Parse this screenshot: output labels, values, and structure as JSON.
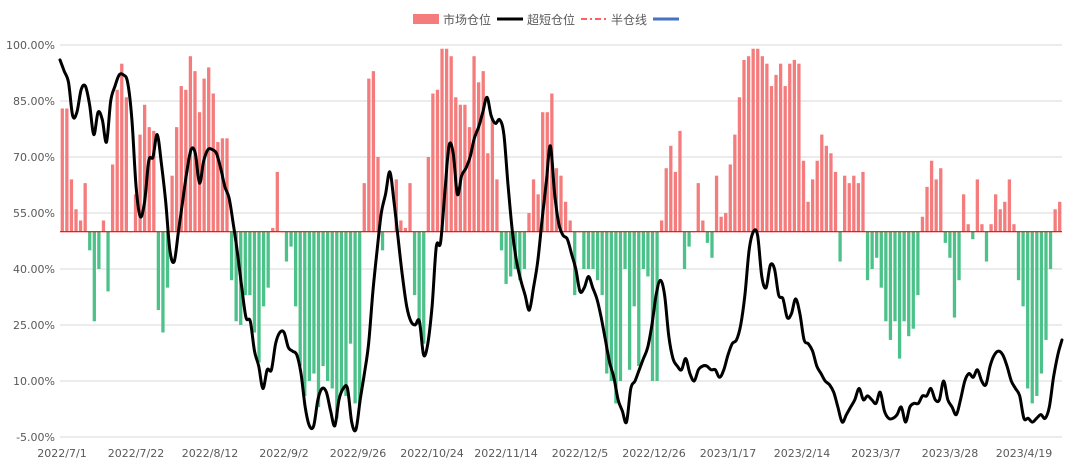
{
  "chart_data": {
    "type": "bar",
    "title": "",
    "xlabel": "",
    "ylabel": "",
    "ylim": [
      -5,
      100
    ],
    "yticks": [
      -5,
      10,
      25,
      40,
      55,
      70,
      85,
      100
    ],
    "ytick_labels": [
      "-5.00%",
      "10.00%",
      "25.00%",
      "40.00%",
      "55.00%",
      "70.00%",
      "85.00%",
      "100.00%"
    ],
    "xtick_labels": [
      "2022/7/1",
      "2022/7/22",
      "2022/8/12",
      "2022/9/2",
      "2022/9/26",
      "2022/10/24",
      "2022/11/14",
      "2022/12/5",
      "2022/12/26",
      "2023/1/17",
      "2023/2/14",
      "2023/3/7",
      "2023/3/28",
      "2023/4/19"
    ],
    "legend_position": "top-center",
    "baseline": 50,
    "colors": {
      "above": "#f47c7c",
      "below": "#4cc28a",
      "line": "#000000",
      "half_line": "#ff0000",
      "blue_line": "#4472c4",
      "grid": "#d9d9d9"
    },
    "legend": [
      {
        "label": "市场仓位",
        "kind": "bar-above"
      },
      {
        "label": "超短仓位",
        "kind": "line"
      },
      {
        "label": "半仓线",
        "kind": "dashdot"
      },
      {
        "label": "",
        "kind": "blue-line"
      }
    ],
    "series": [
      {
        "name": "市场仓位",
        "kind": "bar",
        "values": [
          83,
          83,
          64,
          56,
          53,
          63,
          45,
          26,
          40,
          53,
          34,
          68,
          88,
          95,
          86,
          50,
          60,
          76,
          84,
          78,
          77,
          29,
          23,
          35,
          65,
          78,
          89,
          88,
          97,
          93,
          82,
          91,
          94,
          87,
          74,
          75,
          75,
          37,
          26,
          25,
          33,
          33,
          23,
          15,
          30,
          35,
          51,
          66,
          50,
          42,
          46,
          30,
          14,
          6,
          10,
          12,
          3,
          14,
          10,
          8,
          0,
          7,
          6,
          20,
          4,
          4,
          63,
          91,
          93,
          70,
          45,
          50,
          50,
          64,
          53,
          51,
          63,
          33,
          25,
          20,
          70,
          87,
          88,
          99,
          99,
          97,
          86,
          84,
          84,
          78,
          97,
          90,
          93,
          71,
          80,
          64,
          45,
          36,
          38,
          40,
          37,
          40,
          55,
          64,
          60,
          82,
          82,
          87,
          67,
          65,
          58,
          53,
          33,
          50,
          40,
          40,
          40,
          37,
          33,
          12,
          10,
          4,
          10,
          40,
          13,
          30,
          14,
          40,
          38,
          10,
          10,
          53,
          67,
          73,
          66,
          77,
          40,
          46,
          50,
          63,
          53,
          47,
          43,
          65,
          54,
          55,
          68,
          76,
          86,
          96,
          97,
          99,
          99,
          97,
          95,
          89,
          92,
          95,
          89,
          95,
          96,
          95,
          69,
          58,
          64,
          69,
          76,
          73,
          71,
          66,
          42,
          65,
          63,
          65,
          63,
          66,
          37,
          40,
          43,
          35,
          26,
          21,
          26,
          16,
          26,
          22,
          24,
          33,
          54,
          62,
          69,
          64,
          67,
          47,
          43,
          27,
          37,
          60,
          52,
          48,
          64,
          52,
          42,
          52,
          60,
          56,
          58,
          64,
          52,
          37,
          30,
          8,
          4,
          6,
          12,
          21,
          40,
          56,
          58
        ]
      },
      {
        "name": "超短仓位",
        "kind": "line",
        "values": [
          96,
          93,
          90,
          81,
          82,
          88,
          89,
          84,
          76,
          82,
          80,
          74,
          85,
          89,
          92,
          92,
          90,
          80,
          62,
          54,
          58,
          69,
          70,
          76,
          68,
          58,
          45,
          42,
          50,
          58,
          66,
          72,
          71,
          63,
          69,
          72,
          72,
          71,
          67,
          62,
          59,
          52,
          44,
          35,
          27,
          26,
          18,
          14,
          8,
          13,
          13,
          20,
          23,
          23,
          19,
          18,
          17,
          12,
          3,
          -2,
          -2,
          5,
          8,
          7,
          2,
          -2,
          5,
          8,
          8,
          -1,
          -3,
          5,
          12,
          20,
          34,
          45,
          55,
          60,
          66,
          58,
          48,
          38,
          30,
          26,
          25,
          26,
          17,
          20,
          30,
          46,
          47,
          60,
          73,
          71,
          60,
          65,
          67,
          70,
          75,
          78,
          82,
          86,
          81,
          79,
          80,
          76,
          62,
          50,
          42,
          37,
          33,
          29,
          35,
          42,
          53,
          63,
          73,
          60,
          52,
          49,
          48,
          44,
          40,
          34,
          35,
          38,
          35,
          32,
          27,
          21,
          15,
          11,
          5,
          2,
          -1,
          8,
          10,
          13,
          16,
          19,
          25,
          33,
          37,
          33,
          22,
          16,
          14,
          13,
          16,
          12,
          10,
          13,
          14,
          14,
          13,
          13,
          11,
          13,
          17,
          20,
          21,
          25,
          33,
          45,
          50,
          49,
          38,
          35,
          41,
          40,
          33,
          32,
          27,
          28,
          32,
          28,
          21,
          20,
          18,
          14,
          12,
          10,
          9,
          7,
          3,
          -1,
          1,
          3,
          5,
          8,
          5,
          6,
          5,
          4,
          7,
          2,
          0,
          0,
          1,
          3,
          -1,
          3,
          4,
          4,
          6,
          6,
          8,
          5,
          5,
          10,
          5,
          3,
          1,
          5,
          10,
          12,
          11,
          13,
          10,
          9,
          14,
          17,
          18,
          17,
          14,
          10,
          8,
          6,
          0,
          0,
          -1,
          0,
          1,
          0,
          3,
          11,
          17,
          21
        ]
      }
    ]
  }
}
